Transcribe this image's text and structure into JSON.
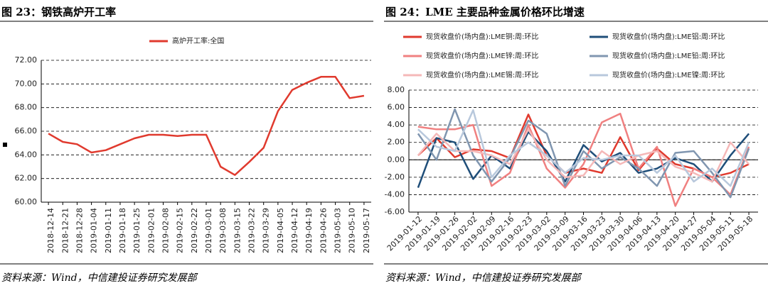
{
  "chart_data": [
    {
      "type": "line",
      "title": "图 23：钢铁高炉开工率",
      "source": "资料来源：Wind，中信建投证券研究发展部",
      "categories": [
        "2018-12-14",
        "2018-12-21",
        "2018-12-28",
        "2019-01-04",
        "2019-01-11",
        "2019-01-18",
        "2019-01-25",
        "2019-02-01",
        "2019-02-08",
        "2019-02-15",
        "2019-02-22",
        "2019-03-01",
        "2019-03-08",
        "2019-03-15",
        "2019-03-22",
        "2019-03-29",
        "2019-04-05",
        "2019-04-12",
        "2019-04-19",
        "2019-04-26",
        "2019-05-03",
        "2019-05-10",
        "2019-05-17"
      ],
      "series": [
        {
          "name": "高炉开工率:全国",
          "color": "#e03a2e",
          "values": [
            65.8,
            65.1,
            64.9,
            64.2,
            64.4,
            64.9,
            65.4,
            65.7,
            65.7,
            65.6,
            65.7,
            65.7,
            63.0,
            62.3,
            63.4,
            64.6,
            67.7,
            69.5,
            70.1,
            70.6,
            70.6,
            68.8,
            69.0
          ]
        }
      ],
      "ylim": [
        60,
        72
      ],
      "yticks": [
        {
          "value": 60,
          "label": "60.00"
        },
        {
          "value": 62,
          "label": "62.00"
        },
        {
          "value": 64,
          "label": "64.00"
        },
        {
          "value": 66,
          "label": "66.00"
        },
        {
          "value": 68,
          "label": "68.00"
        },
        {
          "value": 70,
          "label": "70.00"
        },
        {
          "value": 72,
          "label": "72.00"
        }
      ],
      "grid": true
    },
    {
      "type": "line",
      "title": "图 24：LME 主要品种金属价格环比增速",
      "source": "资料来源：Wind，中信建投证券研究发展部",
      "categories": [
        "2019-01-12",
        "2019-01-19",
        "2019-01-26",
        "2019-02-02",
        "2019-02-09",
        "2019-02-16",
        "2019-02-23",
        "2019-03-02",
        "2019-03-09",
        "2019-03-16",
        "2019-03-23",
        "2019-03-30",
        "2019-04-06",
        "2019-04-13",
        "2019-04-20",
        "2019-04-27",
        "2019-05-04",
        "2019-05-11",
        "2019-05-18"
      ],
      "series": [
        {
          "name": "现货收盘价(场内盘):LME铜:周:环比",
          "color": "#e03a2e",
          "values": [
            0.5,
            2.5,
            0.3,
            1.2,
            1.0,
            0.2,
            5.2,
            0.5,
            -1.5,
            -1.0,
            -1.5,
            2.6,
            -1.2,
            1.3,
            -0.5,
            -1.0,
            -2.0,
            -1.5,
            -0.5
          ]
        },
        {
          "name": "现货收盘价(场内盘):LME铝:周:环比",
          "color": "#1f4e79",
          "values": [
            -3.2,
            2.5,
            2.0,
            -2.2,
            0.5,
            -1.0,
            3.2,
            1.0,
            -2.5,
            1.7,
            -0.2,
            0.8,
            -1.5,
            -1.0,
            0.2,
            -0.5,
            -2.5,
            0.5,
            3.0
          ]
        },
        {
          "name": "现货收盘价(场内盘):LME锌:周:环比",
          "color": "#f08080",
          "values": [
            3.8,
            3.5,
            3.5,
            4.0,
            -3.0,
            -1.5,
            4.0,
            -1.0,
            -3.2,
            -0.5,
            4.3,
            5.3,
            -1.0,
            1.5,
            -5.3,
            -1.0,
            -2.0,
            -4.0,
            1.5
          ]
        },
        {
          "name": "现货收盘价(场内盘):LME铅:周:环比",
          "color": "#8096b0",
          "values": [
            3.0,
            0.0,
            5.8,
            0.5,
            -2.5,
            0.2,
            4.5,
            3.0,
            -3.0,
            1.0,
            -1.0,
            0.3,
            -1.0,
            -3.0,
            0.8,
            1.0,
            -1.5,
            -4.3,
            1.3
          ]
        },
        {
          "name": "现货收盘价(场内盘):LME锡:周:环比",
          "color": "#f5b8b8",
          "values": [
            0.5,
            3.0,
            1.0,
            1.0,
            0.5,
            -0.5,
            3.5,
            0.0,
            -2.0,
            -1.8,
            1.0,
            -0.5,
            0.5,
            1.0,
            -0.8,
            -1.5,
            -2.5,
            2.0,
            -0.5
          ]
        },
        {
          "name": "现货收盘价(场内盘):LME镍:周:环比",
          "color": "#b8c8dc",
          "values": [
            3.5,
            1.5,
            1.0,
            5.7,
            -2.0,
            0.5,
            2.0,
            0.5,
            -1.5,
            0.2,
            0.0,
            0.5,
            0.5,
            -1.5,
            0.5,
            -2.5,
            -1.0,
            -3.0,
            2.0
          ]
        }
      ],
      "ylim": [
        -6,
        8
      ],
      "yticks": [
        {
          "value": -6,
          "label": "-6.00"
        },
        {
          "value": -4,
          "label": "-4.00"
        },
        {
          "value": -2,
          "label": "-2.00"
        },
        {
          "value": 0,
          "label": "0.00"
        },
        {
          "value": 2,
          "label": "2.00"
        },
        {
          "value": 4,
          "label": "4.00"
        },
        {
          "value": 6,
          "label": "6.00"
        },
        {
          "value": 8,
          "label": "8.00"
        }
      ],
      "grid": true
    }
  ]
}
